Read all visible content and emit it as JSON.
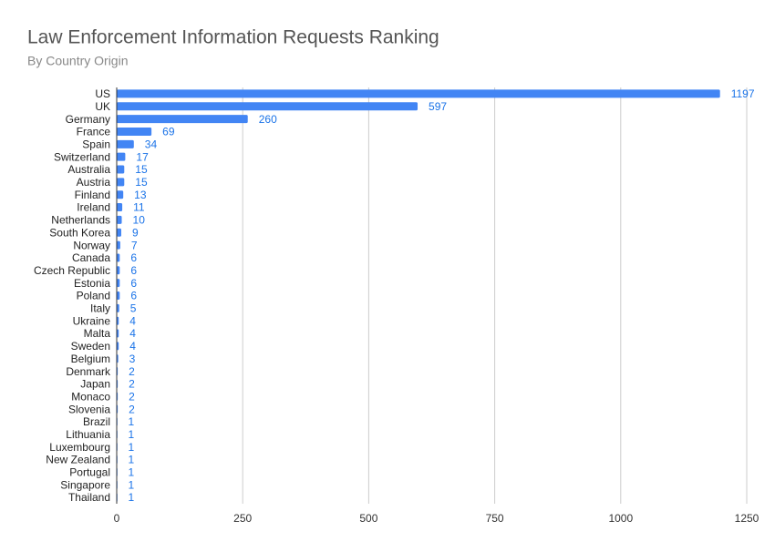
{
  "chart_data": {
    "type": "bar",
    "orientation": "horizontal",
    "title": "Law Enforcement Information Requests Ranking",
    "subtitle": "By Country Origin",
    "categories": [
      "US",
      "UK",
      "Germany",
      "France",
      "Spain",
      "Switzerland",
      "Australia",
      "Austria",
      "Finland",
      "Ireland",
      "Netherlands",
      "South Korea",
      "Norway",
      "Canada",
      "Czech Republic",
      "Estonia",
      "Poland",
      "Italy",
      "Ukraine",
      "Malta",
      "Sweden",
      "Belgium",
      "Denmark",
      "Japan",
      "Monaco",
      "Slovenia",
      "Brazil",
      "Lithuania",
      "Luxembourg",
      "New Zealand",
      "Portugal",
      "Singapore",
      "Thailand"
    ],
    "values": [
      1197,
      597,
      260,
      69,
      34,
      17,
      15,
      15,
      13,
      11,
      10,
      9,
      7,
      6,
      6,
      6,
      6,
      5,
      4,
      4,
      4,
      3,
      2,
      2,
      2,
      2,
      1,
      1,
      1,
      1,
      1,
      1,
      1
    ],
    "color": "#4285f4",
    "xlim": [
      0,
      1250
    ],
    "xticks": [
      0,
      250,
      500,
      750,
      1000,
      1250
    ],
    "grid": true
  }
}
